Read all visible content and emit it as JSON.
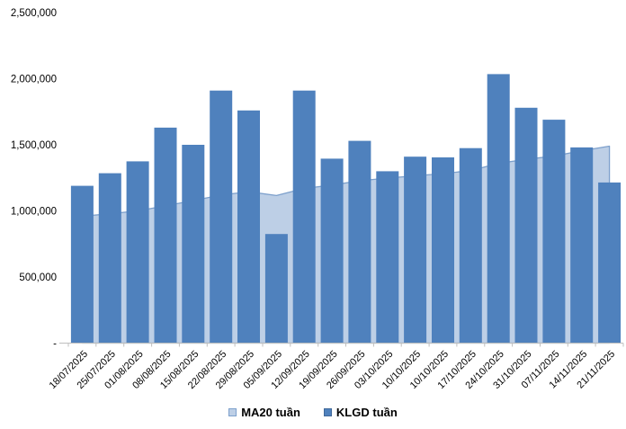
{
  "chart_data": {
    "type": "combo",
    "title": "",
    "xlabel": "",
    "ylabel": "",
    "categories": [
      "18/07/2025",
      "25/07/2025",
      "01/08/2025",
      "08/08/2025",
      "15/08/2025",
      "22/08/2025",
      "29/08/2025",
      "05/09/2025",
      "12/09/2025",
      "19/09/2025",
      "26/09/2025",
      "03/10/2025",
      "10/10/2025",
      "10/10/2025",
      "17/10/2025",
      "24/10/2025",
      "31/10/2025",
      "07/11/2025",
      "14/11/2025",
      "21/11/2025"
    ],
    "series": [
      {
        "name": "MA20 tuần",
        "type": "area",
        "fill": "#bdcfe6",
        "stroke": "#7da0cc",
        "values": [
          960000,
          978000,
          1000000,
          1038000,
          1078000,
          1120000,
          1145000,
          1116000,
          1170000,
          1195000,
          1228000,
          1248000,
          1265000,
          1282000,
          1305000,
          1360000,
          1390000,
          1415000,
          1455000,
          1490000
        ]
      },
      {
        "name": "KLGD tuần",
        "type": "bar",
        "color": "#4f81bd",
        "values": [
          1190000,
          1285000,
          1375000,
          1630000,
          1500000,
          1910000,
          1760000,
          825000,
          1910000,
          1395000,
          1530000,
          1300000,
          1410000,
          1405000,
          1475000,
          2035000,
          1780000,
          1690000,
          1480000,
          1215000
        ]
      }
    ],
    "ylim": [
      0,
      2500000
    ],
    "y_ticks": [
      {
        "label": "-",
        "value": 0
      },
      {
        "label": "500,000",
        "value": 500000
      },
      {
        "label": "1,000,000",
        "value": 1000000
      },
      {
        "label": "1,500,000",
        "value": 1500000
      },
      {
        "label": "2,000,000",
        "value": 2000000
      },
      {
        "label": "2,500,000",
        "value": 2500000
      }
    ],
    "grid": false,
    "legend_position": "bottom",
    "axis_color": "#bfbfbf",
    "label_color": "#000000"
  }
}
